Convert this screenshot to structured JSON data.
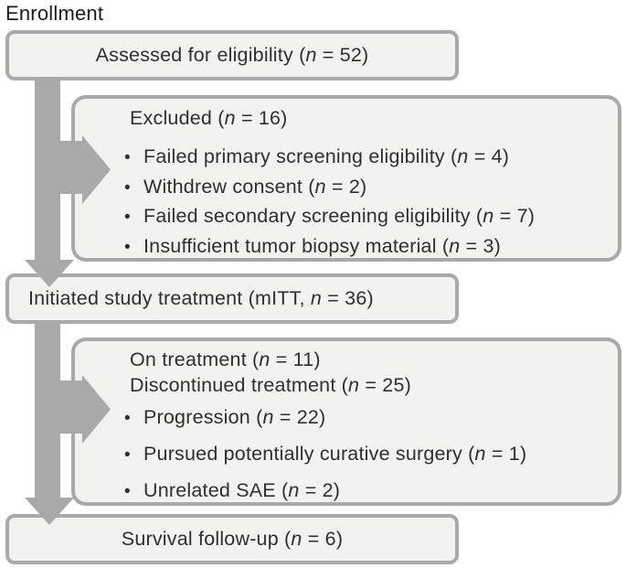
{
  "title": "Enrollment",
  "colors": {
    "box_fill": "#f2f2f1",
    "box_border": "#a9a9a9",
    "arrow": "#a9a9a9",
    "text": "#2f2f2f"
  },
  "flow": {
    "assessed": {
      "lines": [
        {
          "bullet": false,
          "parts": [
            {
              "t": "Assessed for eligibility ("
            },
            {
              "t": "n",
              "i": true
            },
            {
              "t": " = 52)"
            }
          ]
        }
      ]
    },
    "excluded": {
      "lines": [
        {
          "bullet": false,
          "parts": [
            {
              "t": "Excluded ("
            },
            {
              "t": "n",
              "i": true
            },
            {
              "t": " = 16)"
            }
          ]
        },
        {
          "bullet": true,
          "parts": [
            {
              "t": "Failed primary screening eligibility ("
            },
            {
              "t": "n",
              "i": true
            },
            {
              "t": " = 4)"
            }
          ]
        },
        {
          "bullet": true,
          "parts": [
            {
              "t": "Withdrew consent ("
            },
            {
              "t": "n",
              "i": true
            },
            {
              "t": " = 2)"
            }
          ]
        },
        {
          "bullet": true,
          "parts": [
            {
              "t": "Failed secondary screening eligibility ("
            },
            {
              "t": "n",
              "i": true
            },
            {
              "t": " = 7)"
            }
          ]
        },
        {
          "bullet": true,
          "parts": [
            {
              "t": "Insufficient tumor biopsy material ("
            },
            {
              "t": "n",
              "i": true
            },
            {
              "t": " = 3)"
            }
          ]
        }
      ]
    },
    "initiated": {
      "lines": [
        {
          "bullet": false,
          "parts": [
            {
              "t": "Initiated study treatment (mITT, "
            },
            {
              "t": "n",
              "i": true
            },
            {
              "t": " = 36)"
            }
          ]
        }
      ]
    },
    "treatment": {
      "lines": [
        {
          "bullet": false,
          "parts": [
            {
              "t": "On treatment ("
            },
            {
              "t": "n",
              "i": true
            },
            {
              "t": " = 11)"
            }
          ]
        },
        {
          "bullet": false,
          "parts": [
            {
              "t": "Discontinued treatment ("
            },
            {
              "t": "n",
              "i": true
            },
            {
              "t": " = 25)"
            }
          ]
        },
        {
          "bullet": true,
          "parts": [
            {
              "t": "Progression ("
            },
            {
              "t": "n",
              "i": true
            },
            {
              "t": " = 22)"
            }
          ]
        },
        {
          "bullet": true,
          "parts": [
            {
              "t": "Pursued potentially curative surgery ("
            },
            {
              "t": "n",
              "i": true
            },
            {
              "t": " = 1)"
            }
          ]
        },
        {
          "bullet": true,
          "parts": [
            {
              "t": "Unrelated SAE ("
            },
            {
              "t": "n",
              "i": true
            },
            {
              "t": " = 2)"
            }
          ]
        }
      ]
    },
    "survival": {
      "lines": [
        {
          "bullet": false,
          "parts": [
            {
              "t": "Survival follow-up ("
            },
            {
              "t": "n",
              "i": true
            },
            {
              "t": " = 6)"
            }
          ]
        }
      ]
    }
  }
}
